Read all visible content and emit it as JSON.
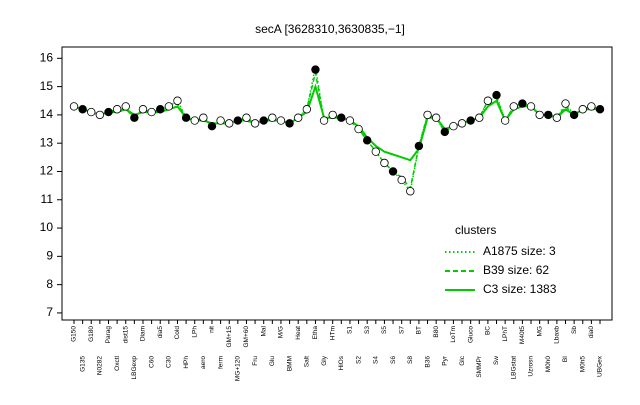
{
  "chart_data": {
    "type": "line",
    "title": "secA [3628310,3630835,−1]",
    "categories": [
      "G150",
      "G135",
      "G180",
      "N0282",
      "Parag",
      "Oxctl",
      "dist15",
      "LBGexp",
      "Diam",
      "C60",
      "dia5",
      "C30",
      "Cold",
      "HPh",
      "LPh",
      "aero",
      "nit",
      "ferm",
      "GM+15",
      "MG+120",
      "GM+60",
      "Fru",
      "Mal",
      "Glu",
      "M/G",
      "BMM",
      "Heat",
      "Salt",
      "Etha",
      "Gly",
      "HTm",
      "HiOs",
      "S1",
      "S2",
      "S3",
      "S4",
      "S5",
      "S6",
      "S7",
      "S8",
      "BT",
      "B36",
      "B80",
      "Pyr",
      "LoTm",
      "Glc",
      "Gluco",
      "SMMPr",
      "BC",
      "Sw",
      "LPhT",
      "LBGstat",
      "M40t5",
      "Uzrosn",
      "MG",
      "M0h0",
      "Lbaxb",
      "BI",
      "Sb",
      "M0h5",
      "dia0",
      "UBGex"
    ],
    "points": {
      "color": "#000000",
      "values": [
        14.3,
        14.2,
        14.1,
        14.0,
        14.1,
        14.2,
        14.3,
        13.9,
        14.2,
        14.1,
        14.2,
        14.3,
        14.5,
        13.9,
        13.8,
        13.9,
        13.6,
        13.8,
        13.7,
        13.8,
        13.9,
        13.7,
        13.8,
        13.9,
        13.8,
        13.7,
        13.9,
        14.2,
        15.6,
        13.8,
        14.0,
        13.9,
        13.8,
        13.5,
        13.1,
        12.7,
        12.3,
        12.0,
        11.7,
        11.3,
        12.9,
        14.0,
        13.9,
        13.4,
        13.6,
        13.7,
        13.8,
        13.9,
        14.5,
        14.7,
        13.8,
        14.3,
        14.4,
        14.3,
        14.0,
        14.0,
        13.9,
        14.4,
        14.0,
        14.2,
        14.3,
        14.2
      ]
    },
    "legend_title": "clusters",
    "series": [
      {
        "name": "A1875 size: 3",
        "color": "#00cc00",
        "dash": "dotted",
        "values": [
          14.3,
          14.2,
          14.1,
          14.0,
          14.1,
          14.2,
          14.3,
          13.9,
          14.2,
          14.1,
          14.2,
          14.3,
          14.5,
          13.9,
          13.8,
          13.9,
          13.6,
          13.8,
          13.7,
          13.8,
          13.9,
          13.7,
          13.8,
          13.9,
          13.8,
          13.7,
          13.9,
          14.2,
          15.7,
          13.8,
          14.0,
          13.9,
          13.8,
          13.5,
          13.1,
          12.7,
          12.3,
          12.0,
          11.7,
          11.3,
          12.9,
          14.0,
          13.9,
          13.4,
          13.6,
          13.7,
          13.8,
          13.9,
          14.5,
          14.7,
          13.8,
          14.3,
          14.4,
          14.3,
          14.0,
          14.0,
          13.9,
          14.4,
          14.0,
          14.2,
          14.3,
          14.2
        ]
      },
      {
        "name": "B39 size: 62",
        "color": "#00cc00",
        "dash": "dashed",
        "values": [
          14.3,
          14.2,
          14.1,
          14.0,
          14.1,
          14.2,
          14.2,
          13.9,
          14.2,
          14.1,
          14.2,
          14.3,
          14.4,
          13.9,
          13.8,
          13.9,
          13.6,
          13.8,
          13.7,
          13.8,
          13.9,
          13.7,
          13.8,
          13.9,
          13.8,
          13.7,
          13.9,
          14.2,
          15.5,
          13.8,
          14.0,
          13.9,
          13.8,
          13.5,
          13.1,
          12.7,
          12.3,
          12.0,
          11.8,
          11.4,
          12.9,
          14.0,
          13.9,
          13.4,
          13.6,
          13.7,
          13.8,
          13.9,
          14.5,
          14.6,
          13.8,
          14.3,
          14.4,
          14.3,
          14.0,
          14.0,
          13.9,
          14.3,
          14.0,
          14.2,
          14.3,
          14.2
        ]
      },
      {
        "name": "C3 size: 1383",
        "color": "#00cc00",
        "dash": "solid",
        "values": [
          14.3,
          14.2,
          14.1,
          14.0,
          14.1,
          14.1,
          14.2,
          14.0,
          14.1,
          14.1,
          14.1,
          14.2,
          14.3,
          13.9,
          13.8,
          13.8,
          13.7,
          13.7,
          13.7,
          13.8,
          13.8,
          13.7,
          13.8,
          13.8,
          13.8,
          13.7,
          13.9,
          14.1,
          15.0,
          13.9,
          13.9,
          13.9,
          13.8,
          13.6,
          13.2,
          12.9,
          12.7,
          12.6,
          12.5,
          12.4,
          12.8,
          13.9,
          13.9,
          13.5,
          13.6,
          13.7,
          13.8,
          13.9,
          14.3,
          14.5,
          13.8,
          14.2,
          14.3,
          14.3,
          14.0,
          14.0,
          13.9,
          14.2,
          14.0,
          14.2,
          14.2,
          14.2
        ]
      }
    ],
    "ylim": [
      6.75,
      16.4
    ],
    "yticks": [
      7,
      8,
      9,
      10,
      11,
      12,
      13,
      14,
      15,
      16
    ],
    "grid": false
  }
}
